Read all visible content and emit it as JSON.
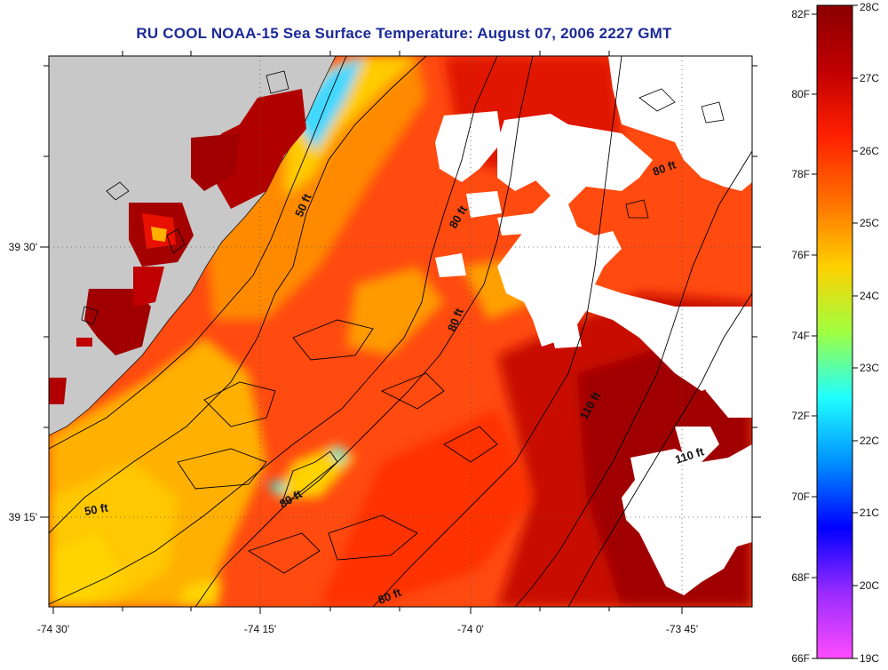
{
  "title": "RU COOL  NOAA-15  Sea Surface Temperature:  August 07, 2006 2227 GMT",
  "axes": {
    "x_ticks": [
      "-74 30'",
      "-74 15'",
      "-74 0'",
      "-73 45'"
    ],
    "y_ticks": [
      "39 30'",
      "39 15'"
    ]
  },
  "contours": [
    "50 ft",
    "80 ft",
    "80 ft",
    "80 ft",
    "110 ft",
    "110 ft",
    "50 ft",
    "80 ft",
    "80 ft"
  ],
  "colorbar": {
    "fahrenheit": [
      "82F",
      "80F",
      "78F",
      "76F",
      "74F",
      "72F",
      "70F",
      "68F",
      "66F"
    ],
    "celsius": [
      "28C",
      "27C",
      "26C",
      "25C",
      "24C",
      "23C",
      "22C",
      "21C",
      "20C",
      "19C"
    ],
    "colors": [
      "#8a0000",
      "#c00000",
      "#ff2000",
      "#ff7000",
      "#ffd000",
      "#a0ff40",
      "#20ffff",
      "#0090ff",
      "#0000ff",
      "#9a2bff",
      "#ff4cff"
    ]
  },
  "colors": {
    "land": "#c8c8c8",
    "cloud": "#ffffff",
    "title": "#1b2a9a"
  }
}
